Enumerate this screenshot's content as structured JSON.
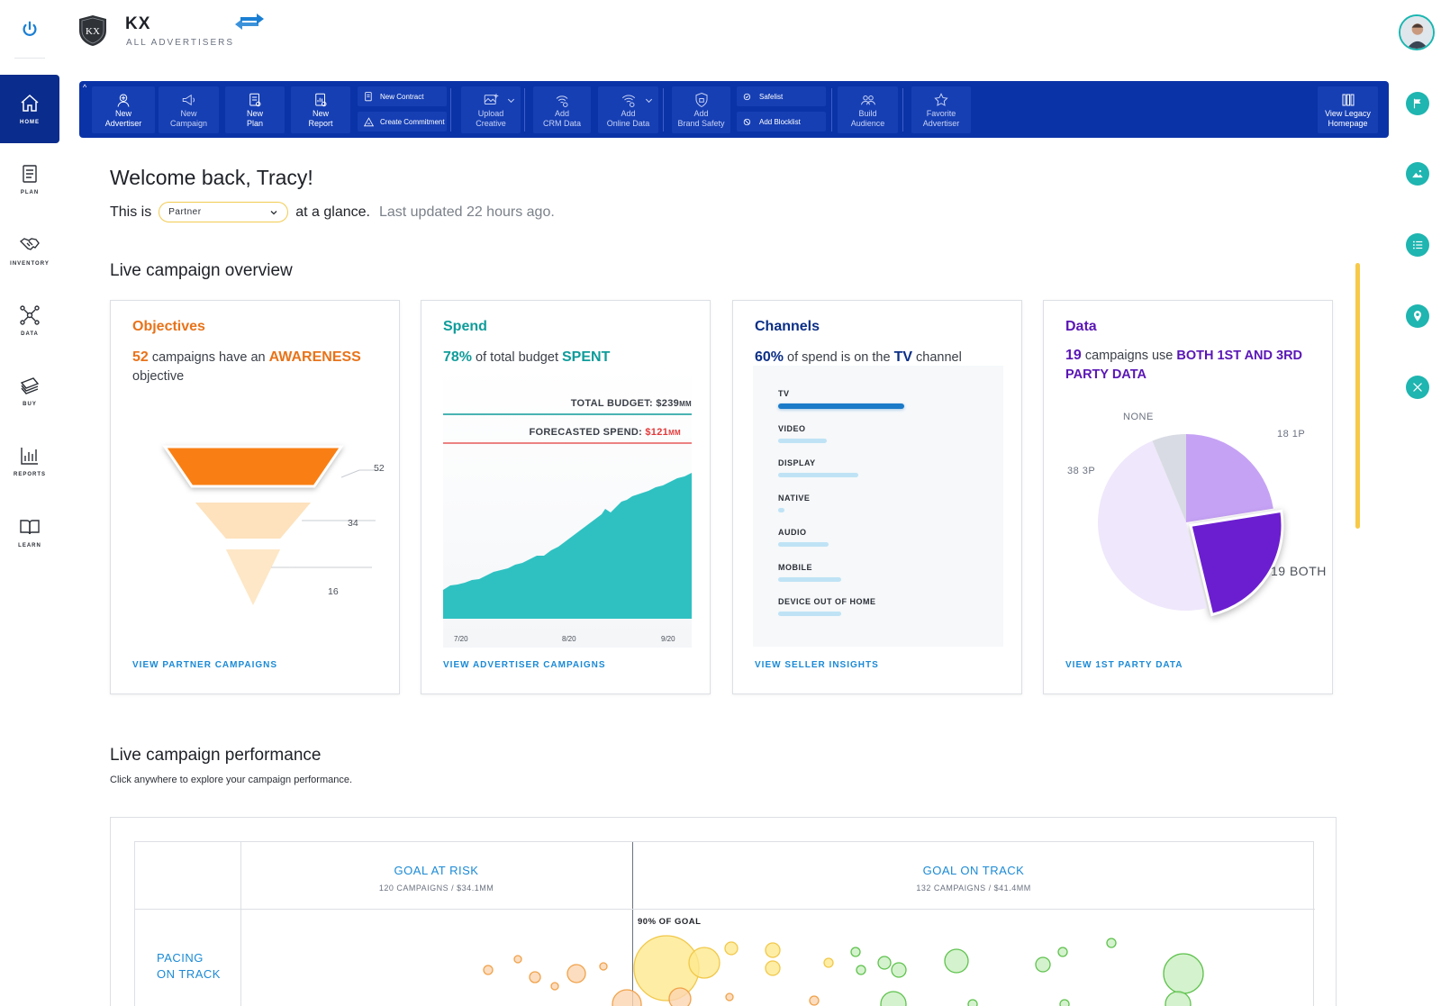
{
  "brand": {
    "name": "KX",
    "subtitle": "ALL ADVERTISERS",
    "logo_text": "KX"
  },
  "nav": [
    {
      "label": "HOME",
      "icon": "home-icon",
      "active": true
    },
    {
      "label": "PLAN",
      "icon": "clipboard-icon"
    },
    {
      "label": "INVENTORY",
      "icon": "handshake-icon"
    },
    {
      "label": "DATA",
      "icon": "nodes-icon"
    },
    {
      "label": "BUY",
      "icon": "money-icon"
    },
    {
      "label": "REPORTS",
      "icon": "bar-chart-icon"
    },
    {
      "label": "LEARN",
      "icon": "book-icon"
    }
  ],
  "toolbar": {
    "new_advertiser": [
      "New",
      "Advertiser"
    ],
    "new_campaign": [
      "New",
      "Campaign"
    ],
    "new_plan": [
      "New",
      "Plan"
    ],
    "new_report": [
      "New",
      "Report"
    ],
    "new_contract": "New Contract",
    "create_commitment": "Create Commitment",
    "upload_creative": [
      "Upload",
      "Creative"
    ],
    "add_crm": [
      "Add",
      "CRM Data"
    ],
    "add_online": [
      "Add",
      "Online Data"
    ],
    "add_brand_safety": [
      "Add",
      "Brand Safety"
    ],
    "safelist": "Safelist",
    "add_blocklist": "Add Blocklist",
    "build_audience": [
      "Build",
      "Audience"
    ],
    "favorite_advertiser": [
      "Favorite",
      "Advertiser"
    ],
    "view_legacy": [
      "View Legacy",
      "Homepage"
    ]
  },
  "welcome": {
    "greeting": "Welcome back, Tracy!",
    "this_is": "This is",
    "selected_view": "Partner",
    "at_a_glance": "at a glance.",
    "last_updated": "Last updated 22 hours ago."
  },
  "overview": {
    "title": "Live campaign overview",
    "objectives": {
      "title": "Objectives",
      "count": "52",
      "text1": " campaigns have an ",
      "highlight": "AWARENESS",
      "text2": " objective",
      "link": "VIEW PARTNER CAMPAIGNS",
      "color": "#e8731a",
      "funnel": [
        52,
        34,
        16
      ],
      "funnel_labels": [
        "52",
        "34",
        "16"
      ]
    },
    "spend": {
      "title": "Spend",
      "pct": "78%",
      "text1": " of total budget ",
      "highlight": "SPENT",
      "total_budget_label": "TOTAL BUDGET: ",
      "total_budget_value": "$239",
      "total_budget_unit": "MM",
      "forecast_label": "FORECASTED SPEND: ",
      "forecast_value": "$121",
      "forecast_unit": "MM",
      "x_ticks": [
        "7/20",
        "8/20",
        "9/20"
      ],
      "link": "VIEW ADVERTISER CAMPAIGNS",
      "color": "#0e9c9a",
      "area_color": "#2fc1c2"
    },
    "channels": {
      "title": "Channels",
      "pct": "60%",
      "text1": " of spend is on the ",
      "highlight": "TV",
      "text2": " channel",
      "rows": [
        {
          "name": "TV",
          "value": 0.6
        },
        {
          "name": "VIDEO",
          "value": 0.23
        },
        {
          "name": "DISPLAY",
          "value": 0.38
        },
        {
          "name": "NATIVE",
          "value": 0.03
        },
        {
          "name": "AUDIO",
          "value": 0.24
        },
        {
          "name": "MOBILE",
          "value": 0.3
        },
        {
          "name": "DEVICE OUT OF HOME",
          "value": 0.3
        }
      ],
      "link": "VIEW SELLER INSIGHTS",
      "color": "#0b2f86"
    },
    "data": {
      "title": "Data",
      "count": "19",
      "text1": " campaigns use ",
      "highlight": "BOTH 1ST AND 3RD PARTY DATA",
      "slices": [
        {
          "label": "18 1P",
          "value": 18,
          "color": "#c6a2f5"
        },
        {
          "label": "19 BOTH",
          "value": 19,
          "color": "#6b1ecf"
        },
        {
          "label": "38 3P",
          "value": 38,
          "color": "#efe7fb"
        },
        {
          "label": "NONE",
          "value": 5,
          "color": "#d8dbe3"
        }
      ],
      "link": "VIEW 1ST PARTY DATA",
      "color": "#5a16b5"
    }
  },
  "performance": {
    "title": "Live campaign performance",
    "subtitle": "Click anywhere to explore your campaign performance.",
    "risk_title": "GOAL AT RISK",
    "risk_sub": "120 CAMPAIGNS / $34.1MM",
    "track_title": "GOAL ON TRACK",
    "track_sub": "132 CAMPAIGNS / $41.4MM",
    "pacing": [
      "PACING",
      "ON TRACK"
    ],
    "goal_marker": "90% OF GOAL"
  }
}
